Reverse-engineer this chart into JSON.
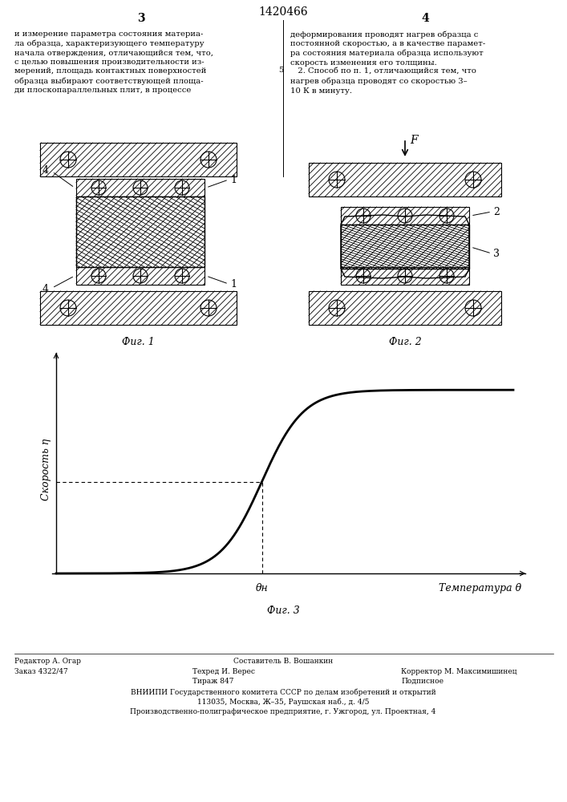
{
  "title": "1420466",
  "fig1_label": "Фиг. 1",
  "fig2_label": "Фиг. 2",
  "fig3_label": "Фиг. 3",
  "graph_xlabel": "Температура θ",
  "graph_ylabel": "Скорость η",
  "graph_theta_n": "θн",
  "left_col_text": "и измерение параметра состояния материа-\nла образца, характеризующего температуру\nначала отверждения, отличающийся тем, что,\nс целью повышения производительности из-\nмерений, площадь контактных поверхностей\nобразца выбирают соответствующей площа-\nди плоскопараллельных плит, в процессе",
  "right_col_text": "деформирования проводят нагрев образца с\nпостоянной скоростью, а в качестве парамет-\nра состояния материала образца используют\nскорость изменения его толщины.\n   2. Способ по п. 1, отличающийся тем, что\nнагрев образца проводят со скоростью 3–\n10 К в минуту.",
  "footer_left1": "Редактор А. Огар",
  "footer_left2": "Заказ 4322/47",
  "footer_comp": "Составитель В. Вошанкин",
  "footer_tech": "Техред И. Верес",
  "footer_corr": "Корректор М. Максимишинец",
  "footer_circ": "Тираж 847",
  "footer_sub": "Подписное",
  "footer_org1": "ВНИИПИ Государственного комитета СССР по делам изобретений и открытий",
  "footer_org2": "113035, Москва, Ж–35, Раушская наб., д. 4/5",
  "footer_org3": "Производственно-полиграфическое предприятие, г. Ужгород, ул. Проектная, 4"
}
